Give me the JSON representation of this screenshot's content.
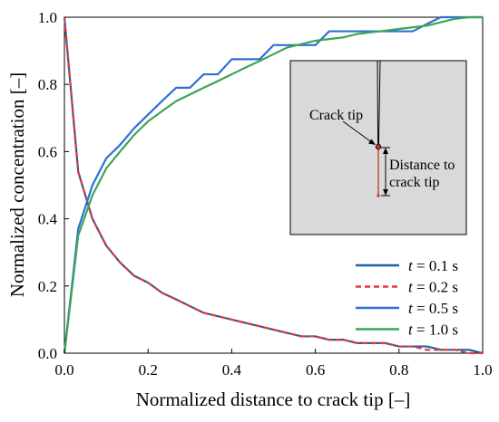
{
  "chart_data": {
    "type": "line",
    "xlabel": "Normalized distance to crack tip [–]",
    "ylabel": "Normalized concentration [–]",
    "xlim": [
      0.0,
      1.0
    ],
    "ylim": [
      0.0,
      1.0
    ],
    "xticks": [
      "0.0",
      "0.2",
      "0.4",
      "0.6",
      "0.8",
      "1.0"
    ],
    "yticks": [
      "0.0",
      "0.2",
      "0.4",
      "0.6",
      "0.8",
      "1.0"
    ],
    "grid": false,
    "legend_position": "bottom-right",
    "series": [
      {
        "name": "t = 0.1 s",
        "name_italic": "t",
        "name_rest": " = 0.1 s",
        "color": "#1f5fa8",
        "style": "solid",
        "x": [
          0.0,
          0.033,
          0.067,
          0.1,
          0.133,
          0.167,
          0.2,
          0.233,
          0.267,
          0.3,
          0.333,
          0.367,
          0.4,
          0.433,
          0.467,
          0.5,
          0.533,
          0.567,
          0.6,
          0.633,
          0.667,
          0.7,
          0.733,
          0.767,
          0.8,
          0.833,
          0.867,
          0.9,
          0.933,
          0.967,
          1.0
        ],
        "y": [
          1.0,
          0.54,
          0.4,
          0.32,
          0.27,
          0.23,
          0.21,
          0.18,
          0.16,
          0.14,
          0.12,
          0.11,
          0.1,
          0.09,
          0.08,
          0.07,
          0.06,
          0.05,
          0.05,
          0.04,
          0.04,
          0.03,
          0.03,
          0.03,
          0.02,
          0.02,
          0.02,
          0.01,
          0.01,
          0.01,
          0.0
        ]
      },
      {
        "name": "t = 0.2 s",
        "name_italic": "t",
        "name_rest": " = 0.2 s",
        "color": "#e8363b",
        "style": "dashed",
        "x": [
          0.0,
          0.033,
          0.067,
          0.1,
          0.133,
          0.167,
          0.2,
          0.233,
          0.267,
          0.3,
          0.333,
          0.367,
          0.4,
          0.433,
          0.467,
          0.5,
          0.533,
          0.567,
          0.6,
          0.633,
          0.667,
          0.7,
          0.733,
          0.767,
          0.8,
          0.833,
          0.867,
          0.9,
          0.933,
          0.967,
          1.0
        ],
        "y": [
          1.0,
          0.54,
          0.4,
          0.32,
          0.27,
          0.23,
          0.21,
          0.18,
          0.16,
          0.14,
          0.12,
          0.11,
          0.1,
          0.09,
          0.08,
          0.07,
          0.06,
          0.05,
          0.05,
          0.04,
          0.04,
          0.03,
          0.03,
          0.03,
          0.02,
          0.02,
          0.01,
          0.01,
          0.01,
          0.0,
          0.0
        ]
      },
      {
        "name": "t = 0.5 s",
        "name_italic": "t",
        "name_rest": " = 0.5 s",
        "color": "#2f6fd6",
        "style": "solid",
        "x": [
          0.0,
          0.033,
          0.067,
          0.1,
          0.133,
          0.167,
          0.2,
          0.233,
          0.267,
          0.3,
          0.333,
          0.367,
          0.4,
          0.433,
          0.467,
          0.5,
          0.533,
          0.567,
          0.6,
          0.633,
          0.667,
          0.7,
          0.733,
          0.767,
          0.8,
          0.833,
          0.867,
          0.9,
          0.933,
          0.967,
          1.0
        ],
        "y": [
          0.0,
          0.37,
          0.5,
          0.58,
          0.62,
          0.67,
          0.71,
          0.75,
          0.79,
          0.79,
          0.83,
          0.83,
          0.875,
          0.875,
          0.875,
          0.917,
          0.917,
          0.917,
          0.917,
          0.958,
          0.958,
          0.958,
          0.958,
          0.958,
          0.958,
          0.958,
          0.98,
          1.0,
          1.0,
          1.0,
          1.0
        ]
      },
      {
        "name": "t = 1.0 s",
        "name_italic": "t",
        "name_rest": " = 1.0 s",
        "color": "#3aa655",
        "style": "solid",
        "x": [
          0.0,
          0.033,
          0.067,
          0.1,
          0.133,
          0.167,
          0.2,
          0.233,
          0.267,
          0.3,
          0.333,
          0.367,
          0.4,
          0.433,
          0.467,
          0.5,
          0.533,
          0.567,
          0.6,
          0.633,
          0.667,
          0.7,
          0.733,
          0.767,
          0.8,
          0.833,
          0.867,
          0.9,
          0.933,
          0.967,
          1.0
        ],
        "y": [
          0.0,
          0.35,
          0.47,
          0.55,
          0.6,
          0.65,
          0.69,
          0.72,
          0.75,
          0.77,
          0.79,
          0.81,
          0.83,
          0.85,
          0.87,
          0.89,
          0.91,
          0.92,
          0.93,
          0.935,
          0.94,
          0.95,
          0.955,
          0.96,
          0.965,
          0.97,
          0.975,
          0.985,
          0.995,
          1.0,
          1.0
        ]
      }
    ],
    "inset": {
      "crack_tip_label": "Crack tip",
      "distance_label_line1": "Distance to",
      "distance_label_line2": "crack tip",
      "panel_color": "#d9d9d9",
      "marker_color": "#c0392b"
    }
  }
}
